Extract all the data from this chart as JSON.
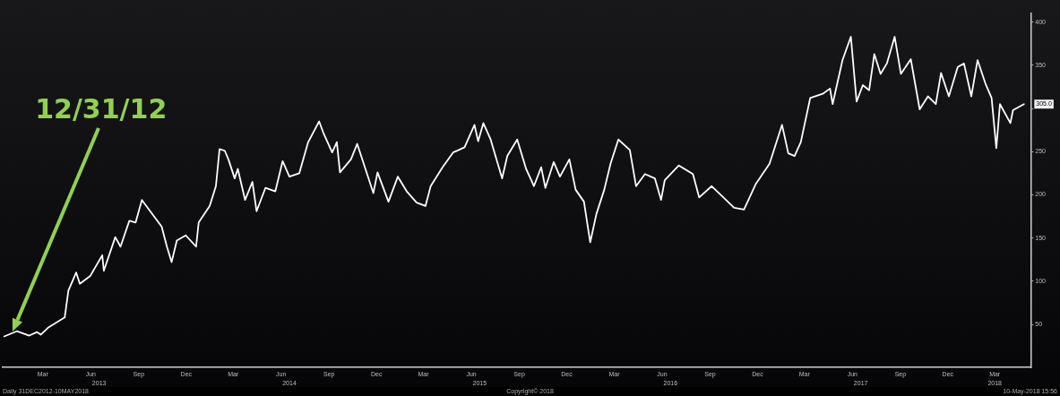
{
  "chart_data": {
    "type": "line",
    "x": [
      "2012-12-31",
      "2013-01-24",
      "2013-02-17",
      "2013-03-04",
      "2013-03-11",
      "2013-03-25",
      "2013-04-26",
      "2013-05-03",
      "2013-05-18",
      "2013-05-25",
      "2013-06-14",
      "2013-07-07",
      "2013-07-10",
      "2013-08-01",
      "2013-08-11",
      "2013-08-28",
      "2013-09-09",
      "2013-09-21",
      "2013-10-07",
      "2013-10-29",
      "2013-11-08",
      "2013-11-17",
      "2013-11-27",
      "2013-12-14",
      "2014-01-03",
      "2014-01-08",
      "2014-01-29",
      "2014-02-10",
      "2014-02-17",
      "2014-02-27",
      "2014-03-06",
      "2014-03-18",
      "2014-03-24",
      "2014-04-07",
      "2014-04-21",
      "2014-04-29",
      "2014-05-16",
      "2014-06-04",
      "2014-06-18",
      "2014-07-01",
      "2014-07-20",
      "2014-08-06",
      "2014-08-27",
      "2014-09-04",
      "2014-09-21",
      "2014-09-30",
      "2014-10-06",
      "2014-10-27",
      "2014-11-08",
      "2014-12-09",
      "2014-12-17",
      "2015-01-07",
      "2015-01-25",
      "2015-02-11",
      "2015-03-02",
      "2015-03-19",
      "2015-03-29",
      "2015-04-21",
      "2015-05-11",
      "2015-06-02",
      "2015-06-21",
      "2015-06-28",
      "2015-07-08",
      "2015-07-22",
      "2015-08-13",
      "2015-08-23",
      "2015-09-11",
      "2015-09-28",
      "2015-10-08",
      "2015-10-13",
      "2015-10-27",
      "2015-11-04",
      "2015-11-20",
      "2015-12-02",
      "2015-12-20",
      "2016-01-01",
      "2016-01-17",
      "2016-01-29",
      "2016-02-10",
      "2016-02-25",
      "2016-03-08",
      "2016-03-23",
      "2016-04-14",
      "2016-04-26",
      "2016-05-13",
      "2016-06-01",
      "2016-06-13",
      "2016-06-20",
      "2016-07-17",
      "2016-08-13",
      "2016-08-25",
      "2016-09-18",
      "2016-10-07",
      "2016-10-31",
      "2016-11-19",
      "2016-12-12",
      "2017-01-07",
      "2017-01-31",
      "2017-02-12",
      "2017-02-24",
      "2017-03-08",
      "2017-03-26",
      "2017-04-19",
      "2017-05-03",
      "2017-05-08",
      "2017-05-27",
      "2017-06-12",
      "2017-06-23",
      "2017-07-05",
      "2017-07-17",
      "2017-07-27",
      "2017-08-08",
      "2017-08-20",
      "2017-09-04",
      "2017-09-16",
      "2017-10-05",
      "2017-10-22",
      "2017-11-07",
      "2017-11-22",
      "2017-12-02",
      "2017-12-17",
      "2018-01-03",
      "2018-01-15",
      "2018-01-29",
      "2018-02-10",
      "2018-02-25",
      "2018-03-09",
      "2018-03-18",
      "2018-03-25",
      "2018-04-14",
      "2018-04-19",
      "2018-05-10"
    ],
    "series": [
      {
        "color": "#ffffff",
        "values": [
          36,
          42,
          37,
          41,
          38,
          46,
          58,
          89,
          110,
          97,
          106,
          130,
          112,
          151,
          140,
          170,
          168,
          194,
          181,
          163,
          140,
          122,
          147,
          153,
          140,
          168,
          187,
          210,
          253,
          251,
          241,
          219,
          230,
          194,
          215,
          181,
          208,
          204,
          239,
          221,
          225,
          261,
          285,
          272,
          249,
          261,
          226,
          241,
          259,
          202,
          226,
          192,
          221,
          204,
          191,
          187,
          210,
          232,
          249,
          255,
          281,
          262,
          283,
          264,
          219,
          245,
          264,
          230,
          217,
          210,
          232,
          208,
          238,
          221,
          241,
          206,
          192,
          145,
          178,
          206,
          236,
          264,
          252,
          210,
          224,
          219,
          194,
          217,
          234,
          224,
          197,
          210,
          199,
          185,
          183,
          213,
          236,
          281,
          248,
          245,
          261,
          312,
          317,
          323,
          305,
          356,
          383,
          308,
          327,
          321,
          363,
          340,
          352,
          383,
          340,
          357,
          299,
          314,
          305,
          341,
          314,
          348,
          352,
          314,
          356,
          329,
          312,
          254,
          305,
          283,
          298,
          305
        ]
      }
    ],
    "xlim": [
      "2012-12-28",
      "2018-05-23"
    ],
    "xticks": [
      {
        "value": "2013-03-15",
        "label": "Mar"
      },
      {
        "value": "2013-06-15",
        "label": "Jun"
      },
      {
        "value": "2013-09-15",
        "label": "Sep"
      },
      {
        "value": "2013-12-15",
        "label": "Dec"
      },
      {
        "value": "2014-03-15",
        "label": "Mar"
      },
      {
        "value": "2014-06-15",
        "label": "Jun"
      },
      {
        "value": "2014-09-15",
        "label": "Sep"
      },
      {
        "value": "2014-12-15",
        "label": "Dec"
      },
      {
        "value": "2015-03-15",
        "label": "Mar"
      },
      {
        "value": "2015-06-15",
        "label": "Jun"
      },
      {
        "value": "2015-09-15",
        "label": "Sep"
      },
      {
        "value": "2015-12-15",
        "label": "Dec"
      },
      {
        "value": "2016-03-15",
        "label": "Mar"
      },
      {
        "value": "2016-06-15",
        "label": "Jun"
      },
      {
        "value": "2016-09-15",
        "label": "Sep"
      },
      {
        "value": "2016-12-15",
        "label": "Dec"
      },
      {
        "value": "2017-03-15",
        "label": "Mar"
      },
      {
        "value": "2017-06-15",
        "label": "Jun"
      },
      {
        "value": "2017-09-15",
        "label": "Sep"
      },
      {
        "value": "2017-12-15",
        "label": "Dec"
      },
      {
        "value": "2018-03-15",
        "label": "Mar"
      }
    ],
    "x2lim": [
      "2012-12-28",
      "2018-05-23"
    ],
    "x2ticks": [
      {
        "value": "2013-07",
        "label": "2013"
      },
      {
        "value": "2014-07",
        "label": "2014"
      },
      {
        "value": "2015-07",
        "label": "2015"
      },
      {
        "value": "2016-07",
        "label": "2016"
      },
      {
        "value": "2017-07",
        "label": "2017"
      },
      {
        "value": "2018-03-15",
        "label": "2018"
      }
    ],
    "ylim": [
      0,
      410
    ],
    "yticks": [
      50,
      100,
      150,
      200,
      250,
      {
        "value": 300,
        "label": null
      },
      350,
      400
    ],
    "annotations": [
      "12/31/12",
      {
        "text": "305.0",
        "x": "2018-05-10",
        "y": 305
      },
      "Daily 31DEC2012-10MAY2018",
      "Copyright© 2018",
      "10-May-2018 15:56"
    ],
    "grid": false,
    "legend": false,
    "marker": "none",
    "line_style": "solid"
  }
}
